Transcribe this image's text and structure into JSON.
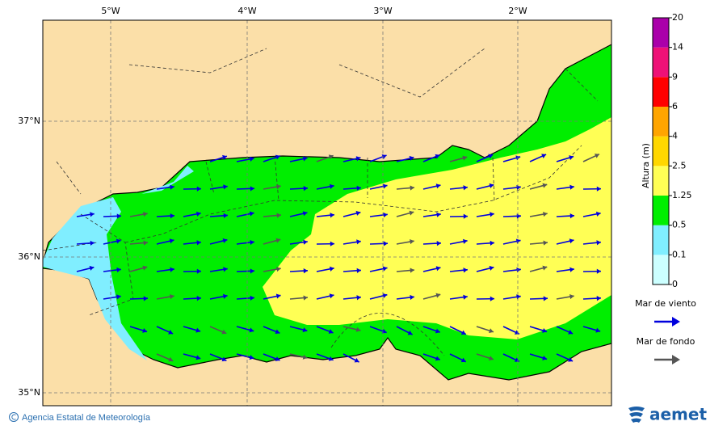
{
  "map": {
    "lon_labels": [
      "5°W",
      "4°W",
      "3°W",
      "2°W"
    ],
    "lat_labels": [
      "37°N",
      "36°N",
      "35°N"
    ]
  },
  "colorbar": {
    "title": "Altura (m)",
    "levels": [
      0,
      0.1,
      0.5,
      1.25,
      2.5,
      4,
      6,
      9,
      14,
      20
    ],
    "colors": [
      "#ccffff",
      "#80eeff",
      "#00ee00",
      "#ffff55",
      "#ffd700",
      "#ffa500",
      "#ff0000",
      "#ee1177",
      "#aa00aa"
    ]
  },
  "legend": {
    "items": [
      {
        "label": "Mar de viento",
        "color": "#0000dd"
      },
      {
        "label": "Mar de fondo",
        "color": "#555555"
      }
    ]
  },
  "footer": {
    "credit": "Agencia Estatal de Meteorología",
    "logo": "aemet"
  }
}
